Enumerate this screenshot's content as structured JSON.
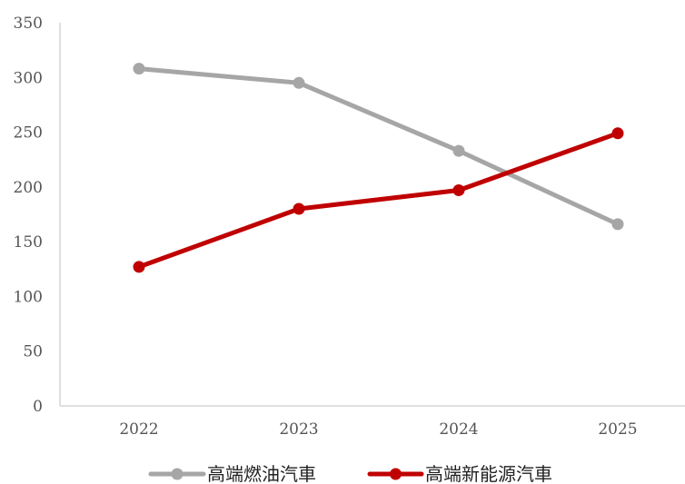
{
  "chart_data": {
    "type": "line",
    "categories": [
      "2022",
      "2023",
      "2024",
      "2025"
    ],
    "series": [
      {
        "name": "高端燃油汽車",
        "values": [
          308,
          295,
          233,
          166
        ],
        "color": "#a6a6a6"
      },
      {
        "name": "高端新能源汽車",
        "values": [
          127,
          180,
          197,
          249
        ],
        "color": "#c00000"
      }
    ],
    "ylim": [
      0,
      350
    ],
    "yticks": [
      "0",
      "50",
      "100",
      "150",
      "200",
      "250",
      "300",
      "350"
    ],
    "grid": false,
    "legend_position": "bottom"
  }
}
